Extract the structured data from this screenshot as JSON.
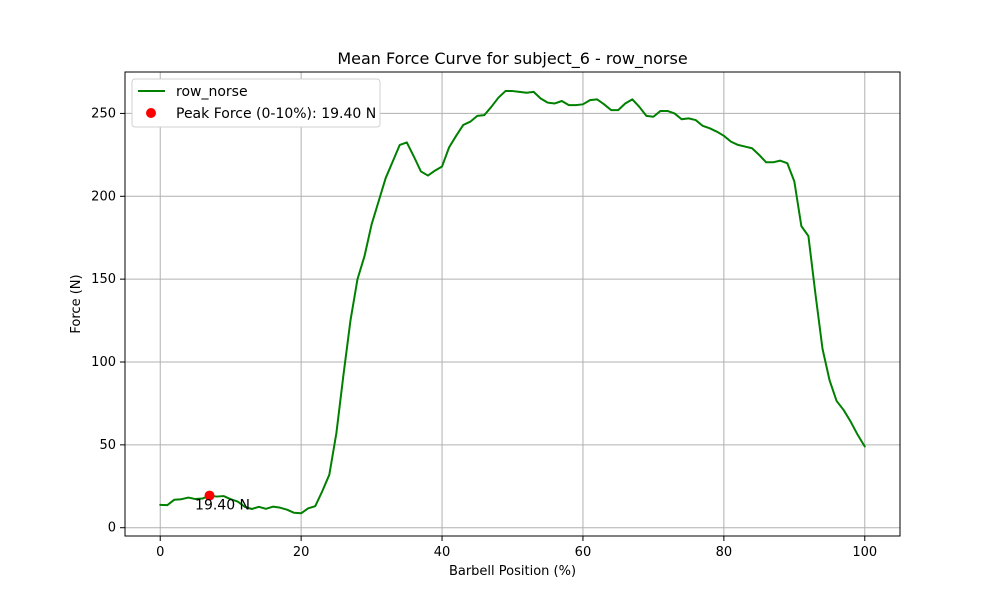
{
  "chart_data": {
    "type": "line",
    "title": "Mean Force Curve for subject_6 - row_norse",
    "xlabel": "Barbell Position (%)",
    "ylabel": "Force (N)",
    "xlim": [
      -5,
      105
    ],
    "ylim": [
      -5,
      275
    ],
    "grid": true,
    "legend_position": "top-left",
    "colors": {
      "line": "#008000",
      "peak": "#ff0000",
      "grid": "#b0b0b0",
      "axis": "#000000"
    },
    "x_ticks": [
      {
        "value": 0,
        "label": "0"
      },
      {
        "value": 20,
        "label": "20"
      },
      {
        "value": 40,
        "label": "40"
      },
      {
        "value": 60,
        "label": "60"
      },
      {
        "value": 80,
        "label": "80"
      },
      {
        "value": 100,
        "label": "100"
      }
    ],
    "y_ticks": [
      {
        "value": 0,
        "label": "0"
      },
      {
        "value": 50,
        "label": "50"
      },
      {
        "value": 100,
        "label": "100"
      },
      {
        "value": 150,
        "label": "150"
      },
      {
        "value": 200,
        "label": "200"
      },
      {
        "value": 250,
        "label": "250"
      }
    ],
    "series": [
      {
        "name": "row_norse",
        "x": [
          0,
          1,
          2,
          3,
          4,
          5,
          6,
          7,
          8,
          9,
          10,
          11,
          12,
          13,
          14,
          15,
          16,
          17,
          18,
          19,
          20,
          21,
          22,
          23,
          24,
          25,
          26,
          27,
          28,
          29,
          30,
          31,
          32,
          33,
          34,
          35,
          36,
          37,
          38,
          39,
          40,
          41,
          42,
          43,
          44,
          45,
          46,
          47,
          48,
          49,
          50,
          51,
          52,
          53,
          54,
          55,
          56,
          57,
          58,
          59,
          60,
          61,
          62,
          63,
          64,
          65,
          66,
          67,
          68,
          69,
          70,
          71,
          72,
          73,
          74,
          75,
          76,
          77,
          78,
          79,
          80,
          81,
          82,
          83,
          84,
          85,
          86,
          87,
          88,
          89,
          90,
          91,
          92,
          93,
          94,
          95,
          96,
          97,
          98,
          99,
          100
        ],
        "values": [
          13.8,
          13.6,
          16.9,
          17.2,
          18.2,
          17.3,
          17.6,
          19.4,
          18.8,
          19.1,
          17.2,
          15.8,
          12.6,
          11.3,
          12.6,
          11.4,
          12.7,
          12.1,
          10.9,
          9.0,
          8.7,
          11.7,
          13.0,
          22.0,
          32.0,
          57.0,
          92.0,
          125.0,
          150.0,
          164.0,
          183.0,
          197.0,
          211.0,
          221.0,
          231.0,
          232.5,
          224.0,
          215.0,
          212.5,
          215.5,
          218.0,
          229.5,
          236.5,
          243.0,
          245.0,
          248.5,
          249.0,
          254.0,
          259.5,
          263.5,
          263.5,
          263.0,
          262.5,
          263.0,
          259.0,
          256.5,
          256.0,
          257.5,
          255.0,
          255.0,
          255.5,
          258.0,
          258.5,
          255.5,
          252.0,
          252.0,
          256.0,
          258.5,
          254.0,
          248.5,
          248.0,
          251.5,
          251.5,
          250.0,
          246.5,
          247.0,
          246.0,
          242.5,
          241.0,
          239.0,
          236.5,
          233.0,
          231.0,
          230.0,
          229.0,
          225.0,
          220.5,
          220.5,
          221.5,
          220.0,
          209.0,
          182.0,
          176.0,
          141.0,
          108.0,
          89.0,
          76.5,
          71.0,
          64.0,
          56.0,
          49.0
        ]
      },
      {
        "name": "Peak Force (0-10%): 19.40 N",
        "x": [
          7
        ],
        "values": [
          19.4
        ],
        "marker": "circle"
      }
    ],
    "annotations": [
      {
        "text": "19.40 N",
        "x": 7,
        "y": 19.4
      }
    ]
  }
}
